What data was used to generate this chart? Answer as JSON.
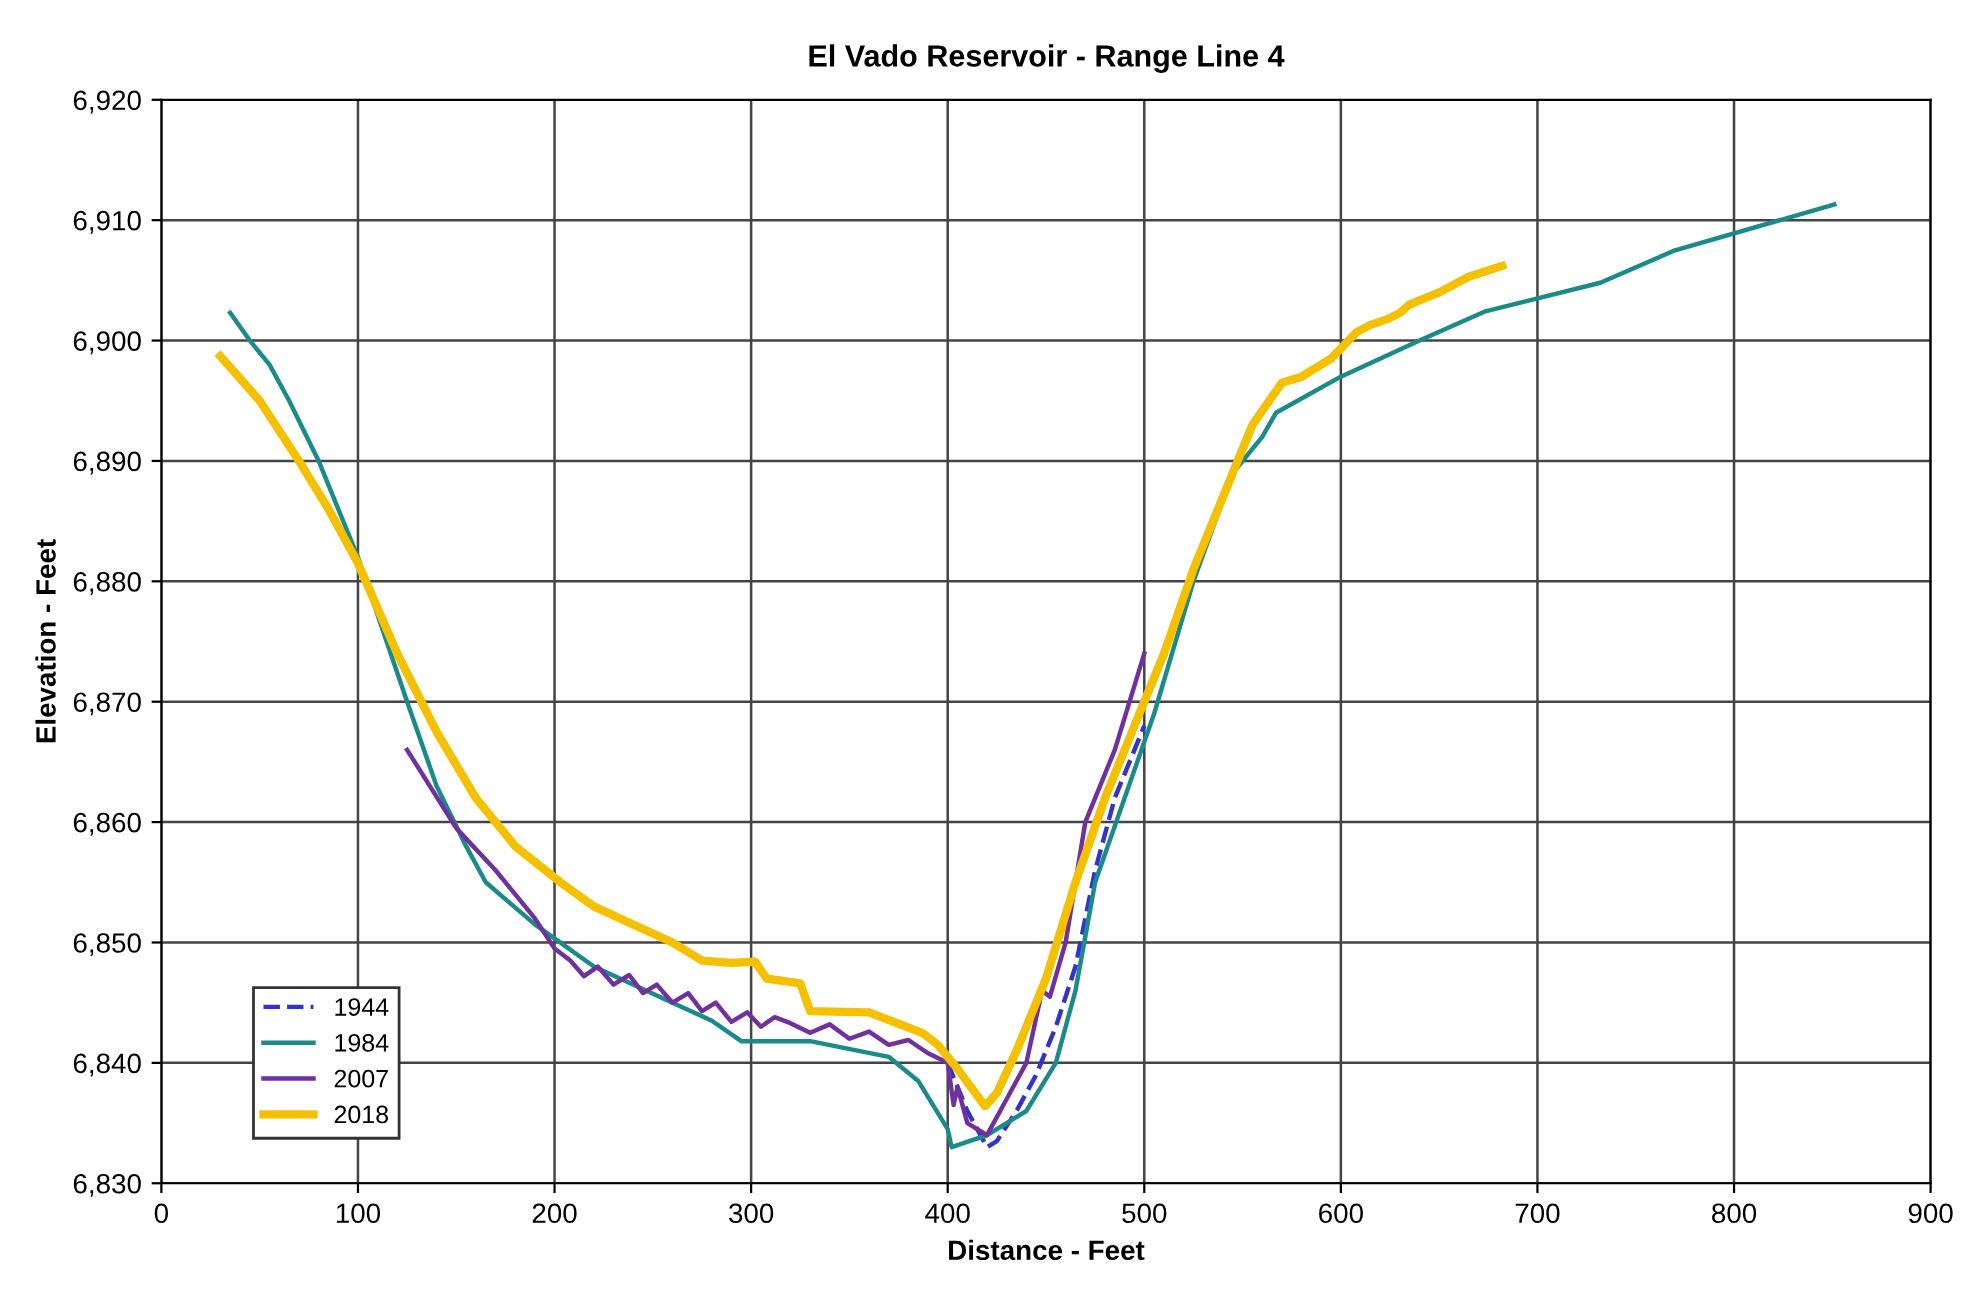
{
  "chart_data": {
    "type": "line",
    "title": "El Vado Reservoir - Range Line 4",
    "xlabel": "Distance - Feet",
    "ylabel": "Elevation - Feet",
    "xlim": [
      0,
      900
    ],
    "xticks": [
      0,
      100,
      200,
      300,
      400,
      500,
      600,
      700,
      800,
      900
    ],
    "ylim": [
      6830,
      6920
    ],
    "yticks": [
      {
        "value": 6830,
        "label": "6,830"
      },
      {
        "value": 6840,
        "label": "6,840"
      },
      {
        "value": 6850,
        "label": "6,850"
      },
      {
        "value": 6860,
        "label": "6,860"
      },
      {
        "value": 6870,
        "label": "6,870"
      },
      {
        "value": 6880,
        "label": "6,880"
      },
      {
        "value": 6890,
        "label": "6,890"
      },
      {
        "value": 6900,
        "label": "6,900"
      },
      {
        "value": 6910,
        "label": "6,910"
      },
      {
        "value": 6920,
        "label": "6,920"
      }
    ],
    "grid": true,
    "legend": "bottom left",
    "marker": "none",
    "series": [
      {
        "name": "1944",
        "color": "#3333cc",
        "line_style": "dashed",
        "x": [
          400,
          410,
          420,
          425,
          435,
          445,
          455,
          465,
          475,
          485,
          500
        ],
        "values": [
          6840,
          6836,
          6833,
          6833.5,
          6836,
          6839,
          6843,
          6848,
          6856,
          6862,
          6868
        ]
      },
      {
        "name": "1984",
        "color": "#1a8a8a",
        "line_style": "solid",
        "x": [
          35,
          45,
          55,
          65,
          80,
          100,
          125,
          140,
          155,
          165,
          190,
          220,
          260,
          280,
          295,
          330,
          370,
          385,
          400,
          402,
          420,
          440,
          455,
          465,
          475,
          490,
          505,
          525,
          545,
          560,
          567,
          600,
          640,
          673,
          732,
          770,
          851
        ],
        "values": [
          6902.3,
          6900,
          6898,
          6895,
          6890,
          6882,
          6870,
          6863,
          6858,
          6855,
          6851.5,
          6848,
          6845,
          6843.5,
          6841.8,
          6841.8,
          6840.5,
          6838.5,
          6834.5,
          6833,
          6834,
          6836,
          6840,
          6846,
          6855,
          6862,
          6869,
          6880,
          6889,
          6892,
          6894,
          6897,
          6900,
          6902.4,
          6904.8,
          6907.5,
          6911.3
        ]
      },
      {
        "name": "2007",
        "color": "#7030a0",
        "line_style": "solid",
        "x": [
          125,
          150,
          170,
          190,
          200,
          208,
          215,
          222,
          230,
          238,
          245,
          252,
          260,
          268,
          275,
          282,
          290,
          298,
          305,
          312,
          320,
          330,
          340,
          350,
          360,
          370,
          380,
          390,
          400,
          403,
          405,
          410,
          420,
          430,
          440,
          448,
          452,
          460,
          470,
          485,
          500
        ],
        "values": [
          6866,
          6859.5,
          6856,
          6852,
          6849.5,
          6848.5,
          6847.2,
          6848,
          6846.5,
          6847.3,
          6845.8,
          6846.5,
          6845,
          6845.8,
          6844.3,
          6845,
          6843.4,
          6844.2,
          6843,
          6843.8,
          6843.3,
          6842.5,
          6843.2,
          6842,
          6842.6,
          6841.5,
          6841.9,
          6840.8,
          6840,
          6836.5,
          6838,
          6835,
          6834,
          6837,
          6840,
          6846,
          6845.5,
          6850,
          6860,
          6866,
          6874
        ]
      },
      {
        "name": "2018",
        "color": "#f5c000",
        "line_style": "solid",
        "x": [
          30,
          50,
          70,
          85,
          100,
          120,
          140,
          160,
          180,
          203,
          220,
          240,
          260,
          275,
          290,
          302,
          308,
          325,
          330,
          360,
          387,
          395,
          405,
          419,
          425,
          435,
          450,
          465,
          480,
          495,
          510,
          525,
          540,
          555,
          570,
          580,
          595,
          608,
          615,
          624,
          630,
          635,
          650,
          665,
          682
        ],
        "values": [
          6898.7,
          6895,
          6890,
          6886,
          6881.5,
          6874,
          6867.5,
          6862,
          6858,
          6855,
          6853,
          6851.5,
          6850,
          6848.5,
          6848.3,
          6848.4,
          6847,
          6846.6,
          6844.3,
          6844.2,
          6842.5,
          6841.5,
          6839.5,
          6836.4,
          6837.5,
          6841,
          6847,
          6855,
          6862,
          6868,
          6874,
          6881,
          6887,
          6893,
          6896.5,
          6897,
          6898.5,
          6900.7,
          6901.3,
          6901.8,
          6902.3,
          6903,
          6904,
          6905.3,
          6906.2
        ]
      }
    ]
  }
}
